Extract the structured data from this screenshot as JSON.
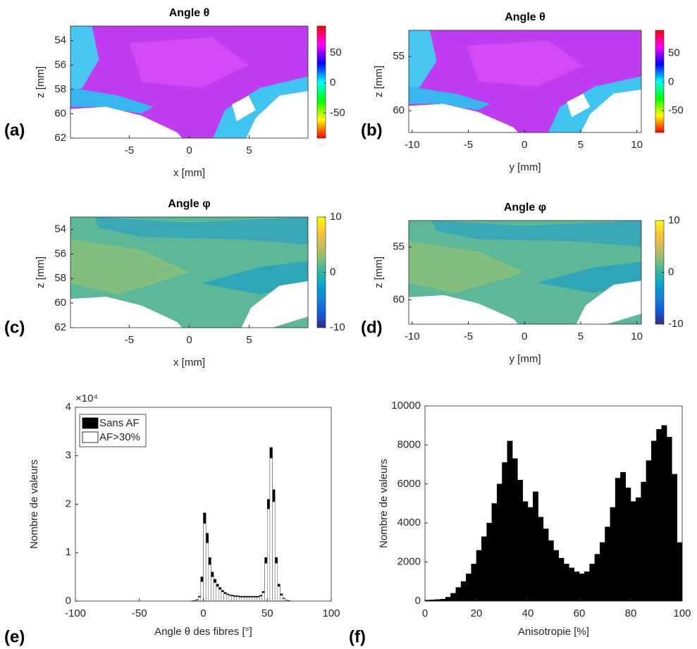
{
  "chart_data": [
    {
      "type": "heatmap",
      "panel": "(a)",
      "title": "Angle θ",
      "xlabel": "x [mm]",
      "ylabel": "z [mm]",
      "xlim": [
        -9.9,
        9.9
      ],
      "ylim": [
        52.8,
        62
      ],
      "xticks": [
        -5,
        0,
        5
      ],
      "yticks": [
        54,
        56,
        58,
        60,
        62
      ],
      "clim": [
        -92,
        95
      ],
      "cticks": [
        -50,
        0,
        50
      ],
      "colormap": [
        "#ff0000",
        "#ffff00",
        "#00ff00",
        "#00ffff",
        "#0000ff",
        "#ff00ff",
        "#ff0000"
      ],
      "y_reversed": true
    },
    {
      "type": "heatmap",
      "panel": "(b)",
      "title": "Angle θ",
      "xlabel": "y [mm]",
      "ylabel": "z [mm]",
      "xlim": [
        -10.3,
        10.4
      ],
      "ylim": [
        52.6,
        62
      ],
      "xticks": [
        -10,
        -5,
        0,
        5,
        10
      ],
      "yticks": [
        55,
        60
      ],
      "clim": [
        -88,
        90
      ],
      "cticks": [
        -50,
        0,
        50
      ],
      "colormap": [
        "#ff0000",
        "#ffff00",
        "#00ff00",
        "#00ffff",
        "#0000ff",
        "#ff00ff",
        "#ff0000"
      ],
      "y_reversed": true
    },
    {
      "type": "heatmap",
      "panel": "(c)",
      "title": "Angle  φ",
      "xlabel": "x [mm]",
      "ylabel": "z [mm]",
      "xlim": [
        -9.9,
        9.9
      ],
      "ylim": [
        53,
        62
      ],
      "xticks": [
        -5,
        0,
        5
      ],
      "yticks": [
        54,
        56,
        58,
        60,
        62
      ],
      "clim": [
        -10,
        10
      ],
      "cticks": [
        -10,
        0,
        10
      ],
      "colormap": [
        "#352a87",
        "#0f5cdd",
        "#1481d6",
        "#06a4ca",
        "#2eb7a4",
        "#87bf77",
        "#d1bb59",
        "#fec832",
        "#f9fb0e"
      ],
      "y_reversed": true
    },
    {
      "type": "heatmap",
      "panel": "(d)",
      "title": "Angle  φ",
      "xlabel": "y [mm]",
      "ylabel": "z [mm]",
      "xlim": [
        -10.3,
        10.4
      ],
      "ylim": [
        52.5,
        62.3
      ],
      "xticks": [
        -10,
        -5,
        0,
        5,
        10
      ],
      "yticks": [
        55,
        60
      ],
      "clim": [
        -10,
        10
      ],
      "cticks": [
        -10,
        0,
        10
      ],
      "colormap": [
        "#352a87",
        "#0f5cdd",
        "#1481d6",
        "#06a4ca",
        "#2eb7a4",
        "#87bf77",
        "#d1bb59",
        "#fec832",
        "#f9fb0e"
      ],
      "y_reversed": true
    },
    {
      "type": "histogram",
      "panel": "(e)",
      "xlabel": "Angle θ des fibres [°]",
      "ylabel": "Nombre de valeurs",
      "y_multiplier": "×10⁴",
      "xlim": [
        -100,
        100
      ],
      "ylim": [
        0,
        4
      ],
      "xticks": [
        -100,
        -50,
        0,
        50,
        100
      ],
      "yticks": [
        0,
        1,
        2,
        3,
        4
      ],
      "legend": "northwest",
      "bins": [
        -90,
        -88,
        -86,
        -84,
        -82,
        -80,
        -78,
        -76,
        -74,
        -72,
        -70,
        -68,
        -66,
        -64,
        -62,
        -60,
        -58,
        -56,
        -54,
        -52,
        -50,
        -48,
        -46,
        -44,
        -42,
        -40,
        -38,
        -36,
        -34,
        -32,
        -30,
        -28,
        -26,
        -24,
        -22,
        -20,
        -18,
        -16,
        -14,
        -12,
        -10,
        -8,
        -6,
        -4,
        -2,
        0,
        2,
        4,
        6,
        8,
        10,
        12,
        14,
        16,
        18,
        20,
        22,
        24,
        26,
        28,
        30,
        32,
        34,
        36,
        38,
        40,
        42,
        44,
        46,
        48,
        50,
        52,
        54,
        56,
        58,
        60,
        62,
        64,
        66,
        68,
        70,
        72,
        74,
        76,
        78,
        80,
        82,
        84,
        86,
        88,
        90
      ],
      "series": [
        {
          "name": "Sans AF",
          "color": "#000000",
          "values": [
            0,
            0,
            0,
            0,
            0,
            0,
            0,
            0,
            0,
            0,
            0,
            0,
            0,
            0,
            0,
            0,
            0,
            0,
            0,
            0,
            0,
            0,
            0,
            0,
            0,
            0,
            0,
            0,
            0,
            0,
            0,
            0,
            0,
            0,
            0,
            0,
            0,
            0,
            0,
            0,
            0.005,
            0.01,
            0.03,
            0.1,
            0.5,
            1.82,
            1.4,
            0.9,
            0.6,
            0.45,
            0.35,
            0.28,
            0.22,
            0.18,
            0.15,
            0.13,
            0.12,
            0.11,
            0.11,
            0.1,
            0.1,
            0.1,
            0.1,
            0.1,
            0.1,
            0.1,
            0.1,
            0.12,
            0.2,
            0.9,
            2.1,
            3.17,
            2.3,
            0.9,
            0.35,
            0.15,
            0.06,
            0.02,
            0.01,
            0,
            0,
            0,
            0,
            0,
            0,
            0,
            0,
            0,
            0,
            0,
            0
          ]
        },
        {
          "name": "AF>30%",
          "color": "#ffffff",
          "values": [
            0,
            0,
            0,
            0,
            0,
            0,
            0,
            0,
            0,
            0,
            0,
            0,
            0,
            0,
            0,
            0,
            0,
            0,
            0,
            0,
            0,
            0,
            0,
            0,
            0,
            0,
            0,
            0,
            0,
            0,
            0,
            0,
            0,
            0,
            0,
            0,
            0,
            0,
            0,
            0,
            0,
            0.005,
            0.02,
            0.08,
            0.4,
            1.6,
            1.2,
            0.75,
            0.5,
            0.38,
            0.3,
            0.24,
            0.19,
            0.15,
            0.13,
            0.11,
            0.1,
            0.09,
            0.09,
            0.08,
            0.08,
            0.08,
            0.08,
            0.08,
            0.08,
            0.08,
            0.08,
            0.1,
            0.17,
            0.78,
            1.9,
            2.95,
            2.05,
            0.78,
            0.3,
            0.12,
            0.05,
            0.015,
            0.005,
            0,
            0,
            0,
            0,
            0,
            0,
            0,
            0,
            0,
            0,
            0,
            0
          ]
        }
      ]
    },
    {
      "type": "histogram",
      "panel": "(f)",
      "xlabel": "Anisotropie [%]",
      "ylabel": "Nombre de valeurs",
      "xlim": [
        0,
        100
      ],
      "ylim": [
        0,
        10000
      ],
      "xticks": [
        0,
        20,
        40,
        60,
        80,
        100
      ],
      "yticks": [
        0,
        2000,
        4000,
        6000,
        8000,
        10000
      ],
      "bins": [
        0,
        2,
        4,
        6,
        8,
        10,
        12,
        14,
        16,
        18,
        20,
        22,
        24,
        26,
        28,
        30,
        32,
        34,
        36,
        38,
        40,
        42,
        44,
        46,
        48,
        50,
        52,
        54,
        56,
        58,
        60,
        62,
        64,
        66,
        68,
        70,
        72,
        74,
        76,
        78,
        80,
        82,
        84,
        86,
        88,
        90,
        92,
        94,
        96,
        98,
        100
      ],
      "series": [
        {
          "color": "#000000",
          "values": [
            50,
            60,
            80,
            100,
            200,
            400,
            700,
            1000,
            1400,
            1900,
            2600,
            3300,
            4000,
            5000,
            6000,
            7100,
            8200,
            7300,
            6200,
            5100,
            4800,
            5600,
            4300,
            3700,
            3100,
            2600,
            2200,
            1900,
            1700,
            1500,
            1400,
            1500,
            1900,
            2400,
            3000,
            3800,
            4800,
            6300,
            6600,
            5800,
            5100,
            5300,
            6100,
            7200,
            8200,
            8800,
            9000,
            8400,
            6500,
            3000
          ]
        }
      ]
    }
  ]
}
